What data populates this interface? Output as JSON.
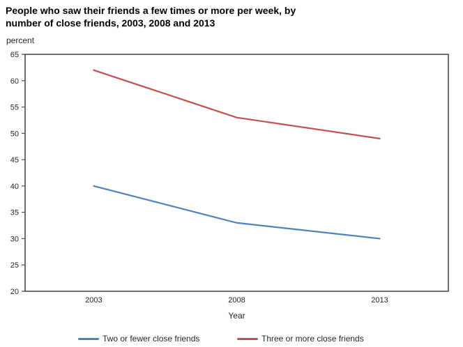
{
  "header": {
    "title_line1": "People who saw their friends a few times or more per week, by",
    "title_line2": "number of close friends, 2003, 2008 and 2013"
  },
  "chart_data": {
    "type": "line",
    "title": "People who saw their friends a few times or more per week, by number of close friends, 2003, 2008 and 2013",
    "ylabel": "percent",
    "xlabel": "Year",
    "x": [
      2003,
      2008,
      2013
    ],
    "categories": [
      "2003",
      "2008",
      "2013"
    ],
    "series": [
      {
        "name": "Two or fewer close friends",
        "color": "#4F81BD",
        "values": [
          40,
          33,
          30
        ]
      },
      {
        "name": "Three or more close friends",
        "color": "#C0504D",
        "values": [
          62,
          53,
          49
        ]
      }
    ],
    "ylim": [
      20,
      65
    ],
    "ytick_step": 5,
    "xlim": [
      2000.6,
      2015.4
    ],
    "grid": false,
    "legend_position": "bottom",
    "axis_color": "#4a4a4a",
    "tick_label_color": "#262626"
  }
}
